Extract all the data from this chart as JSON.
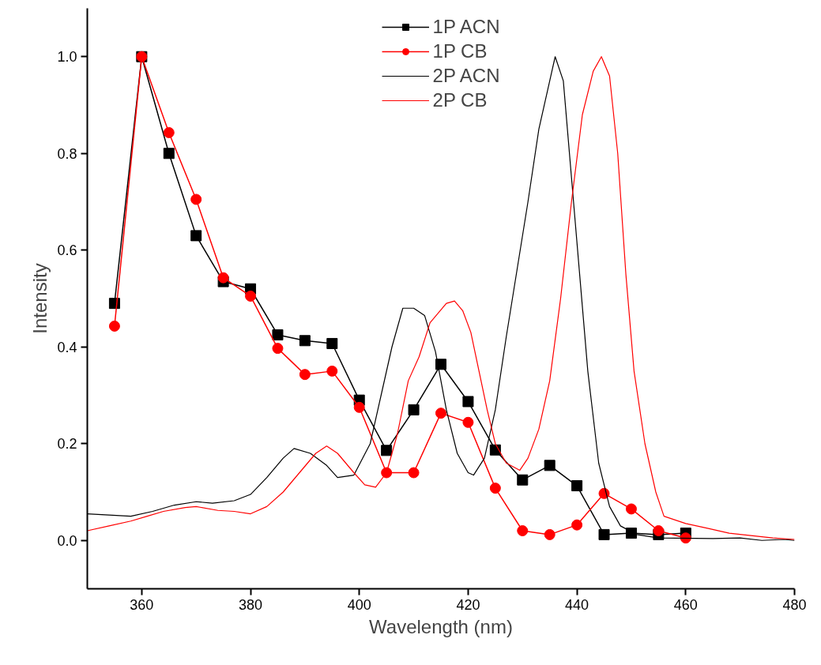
{
  "chart_data": {
    "type": "line",
    "xlabel": "Wavelength (nm)",
    "ylabel": "Intensity",
    "xlim": [
      350,
      480
    ],
    "ylim": [
      -0.1,
      1.1
    ],
    "xticks": [
      360,
      380,
      400,
      420,
      440,
      460,
      480
    ],
    "yticks": [
      {
        "value": 0,
        "label": "0.0"
      },
      {
        "value": 0.2,
        "label": "0.2"
      },
      {
        "value": 0.4,
        "label": "0.4"
      },
      {
        "value": 0.6,
        "label": "0.6"
      },
      {
        "value": 0.8,
        "label": "0.8"
      },
      {
        "value": 1,
        "label": "1.0"
      }
    ],
    "grid": false,
    "legend": "top",
    "series": [
      {
        "name": "1P ACN",
        "color": "#000000",
        "marker": "square",
        "x": [
          355,
          360,
          365,
          370,
          375,
          380,
          385,
          390,
          395,
          400,
          405,
          410,
          415,
          420,
          425,
          430,
          435,
          440,
          445,
          450,
          455,
          460
        ],
        "values": [
          0.49,
          1.0,
          0.8,
          0.63,
          0.535,
          0.52,
          0.425,
          0.413,
          0.407,
          0.29,
          0.186,
          0.27,
          0.364,
          0.287,
          0.187,
          0.125,
          0.155,
          0.113,
          0.012,
          0.015,
          0.012,
          0.015
        ]
      },
      {
        "name": "1P CB",
        "color": "#ff0000",
        "marker": "circle",
        "x": [
          355,
          360,
          365,
          370,
          375,
          380,
          385,
          390,
          395,
          400,
          405,
          410,
          415,
          420,
          425,
          430,
          435,
          440,
          445,
          450,
          455,
          460
        ],
        "values": [
          0.443,
          1.0,
          0.843,
          0.705,
          0.543,
          0.505,
          0.397,
          0.343,
          0.35,
          0.275,
          0.14,
          0.14,
          0.263,
          0.244,
          0.108,
          0.02,
          0.012,
          0.032,
          0.097,
          0.065,
          0.02,
          0.005
        ]
      },
      {
        "name": "2P ACN",
        "color": "#000000",
        "marker": "none",
        "x": [
          350,
          358,
          362,
          366,
          370,
          373,
          377,
          380,
          383,
          386,
          388,
          391,
          394,
          396,
          399,
          402,
          404,
          406,
          408,
          410,
          412,
          414,
          416,
          418,
          420,
          421,
          423,
          425,
          427,
          429,
          431,
          433,
          435,
          436,
          437.5,
          439,
          440.5,
          442,
          444,
          446,
          448,
          451,
          455,
          465,
          470,
          474,
          478,
          480
        ],
        "values": [
          0.055,
          0.05,
          0.06,
          0.073,
          0.08,
          0.077,
          0.082,
          0.095,
          0.13,
          0.17,
          0.19,
          0.18,
          0.155,
          0.13,
          0.135,
          0.2,
          0.3,
          0.4,
          0.48,
          0.48,
          0.465,
          0.39,
          0.27,
          0.18,
          0.14,
          0.135,
          0.17,
          0.27,
          0.42,
          0.56,
          0.7,
          0.85,
          0.95,
          1.0,
          0.95,
          0.75,
          0.55,
          0.35,
          0.16,
          0.07,
          0.03,
          0.012,
          0.005,
          0.004,
          0.005,
          0.0,
          0.002,
          0.0
        ]
      },
      {
        "name": "2P CB",
        "color": "#ff0000",
        "marker": "none",
        "x": [
          350,
          354,
          358,
          361,
          364,
          368,
          370,
          374,
          377,
          380,
          383,
          386,
          389,
          392,
          394,
          396,
          399,
          401,
          403,
          405,
          407,
          409,
          411,
          413,
          416,
          417.5,
          419,
          420.5,
          422,
          423.5,
          425,
          427,
          429.5,
          431,
          433,
          435,
          437,
          439,
          441,
          443,
          444.5,
          446,
          447.5,
          449,
          450.5,
          452.5,
          454.5,
          456,
          460,
          464,
          468,
          472,
          476,
          480
        ],
        "values": [
          0.02,
          0.03,
          0.04,
          0.05,
          0.06,
          0.068,
          0.07,
          0.062,
          0.06,
          0.055,
          0.07,
          0.1,
          0.14,
          0.18,
          0.195,
          0.18,
          0.14,
          0.115,
          0.11,
          0.14,
          0.22,
          0.33,
          0.38,
          0.45,
          0.49,
          0.495,
          0.475,
          0.43,
          0.35,
          0.27,
          0.2,
          0.16,
          0.145,
          0.17,
          0.23,
          0.33,
          0.5,
          0.7,
          0.88,
          0.97,
          1.0,
          0.96,
          0.8,
          0.55,
          0.35,
          0.2,
          0.1,
          0.05,
          0.035,
          0.025,
          0.015,
          0.01,
          0.005,
          0.002
        ]
      }
    ]
  }
}
